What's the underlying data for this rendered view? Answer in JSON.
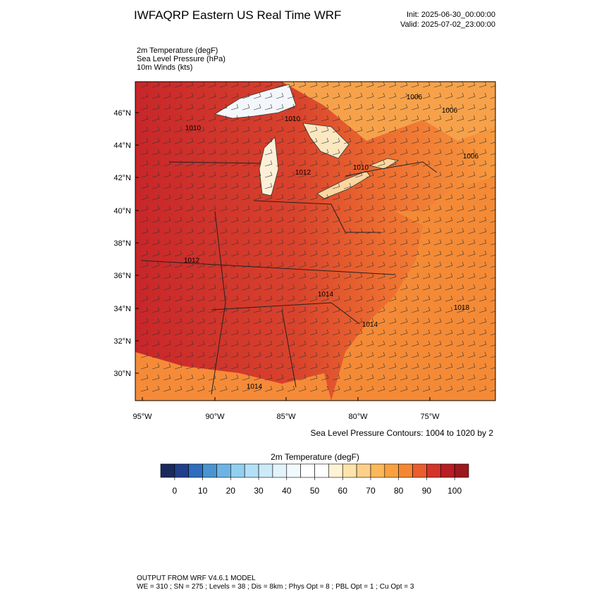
{
  "header": {
    "title": "IWFAQRP Eastern US Real Time WRF",
    "init": "Init: 2025-06-30_00:00:00",
    "valid": "Valid: 2025-07-02_23:00:00"
  },
  "fields": [
    "2m Temperature   (degF)",
    "Sea Level Pressure   (hPa)",
    "10m Winds   (kts)"
  ],
  "map": {
    "lat_labels": [
      "46°N",
      "44°N",
      "42°N",
      "40°N",
      "38°N",
      "36°N",
      "34°N",
      "32°N",
      "30°N"
    ],
    "lon_labels": [
      "95°W",
      "90°W",
      "85°W",
      "80°W",
      "75°W"
    ],
    "contour_labels": [
      "1006",
      "1006",
      "1010",
      "1010",
      "1012",
      "1010",
      "1006",
      "1012",
      "1014",
      "1014",
      "1018",
      "1014"
    ],
    "contour_note": "Sea Level Pressure Contours: 1004 to 1020 by 2"
  },
  "colorbar": {
    "title": "2m Temperature  (degF)",
    "colors": [
      "#1b2a5c",
      "#213f8a",
      "#2f6dbd",
      "#4a94d2",
      "#6db4e4",
      "#93cfef",
      "#b3e0f6",
      "#cceaf8",
      "#e2f3fb",
      "#f2f9fd",
      "#ffffff",
      "#ffffff",
      "#fff3d6",
      "#fde5aa",
      "#fdd08a",
      "#fcb859",
      "#f9a03f",
      "#f48634",
      "#ea5d2e",
      "#d4342a",
      "#b81e24",
      "#9a1a1e"
    ],
    "ticks": [
      0,
      10,
      20,
      30,
      40,
      50,
      60,
      70,
      80,
      90,
      100
    ]
  },
  "footer": [
    "OUTPUT FROM WRF V4.6.1 MODEL",
    "WE = 310 ; SN = 275 ; Levels = 38 ; Dis = 8km ; Phys Opt = 8 ; PBL Opt = 1 ; Cu Opt = 3"
  ]
}
